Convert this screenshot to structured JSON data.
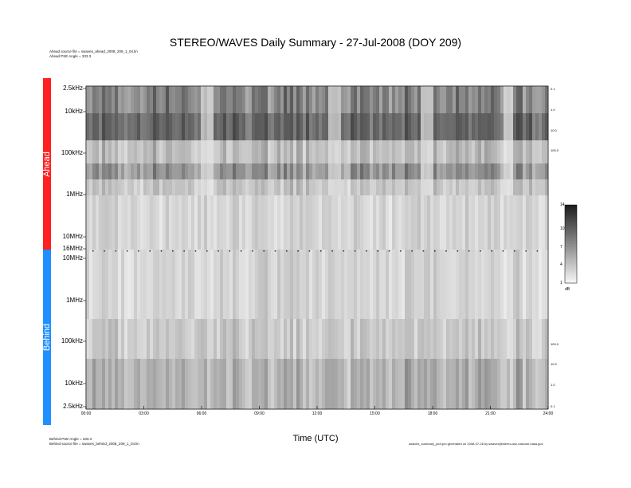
{
  "chart_data": {
    "type": "heatmap",
    "title": "STEREO/WAVES Daily Summary - 27-Jul-2008 (DOY 209)",
    "xlabel": "Time (UTC)",
    "x_ticks": [
      "00:00",
      "03:00",
      "06:00",
      "09:00",
      "12:00",
      "15:00",
      "18:00",
      "21:00",
      "24:00"
    ],
    "xlim": [
      0,
      24
    ],
    "panels": [
      {
        "name": "Ahead",
        "color": "#ff2020",
        "y_ticks": [
          "2.5kHz",
          "10kHz",
          "100kHz",
          "1MHz",
          "10MHz",
          "16MHz"
        ],
        "right_ticks": [
          "0.1",
          "1.0",
          "10.0",
          "100.0"
        ],
        "source_file": "Ahead source file = swaves_ahead_2008_209_1_04.lin",
        "pse_angle": "Ahead PSE Angle = 333.3"
      },
      {
        "name": "Behind",
        "color": "#1e90ff",
        "y_ticks": [
          "10MHz",
          "1MHz",
          "100kHz",
          "10kHz",
          "2.5kHz"
        ],
        "right_ticks": [
          "100.0",
          "10.0",
          "1.0",
          "0.1"
        ],
        "source_file": "Behind source file = swaves_behind_2008_209_1_04.lin",
        "pse_angle": "Behind PSE Angle = 333.3"
      }
    ],
    "colorbar": {
      "ticks": [
        "14",
        "10",
        "7",
        "4",
        "1"
      ],
      "unit": "dB",
      "range": [
        1,
        14
      ]
    },
    "footer": "swaves_summary_plot.pro generated on 2008-07-28 by swaves@stereo-ssc.nascom.nasa.gov"
  }
}
